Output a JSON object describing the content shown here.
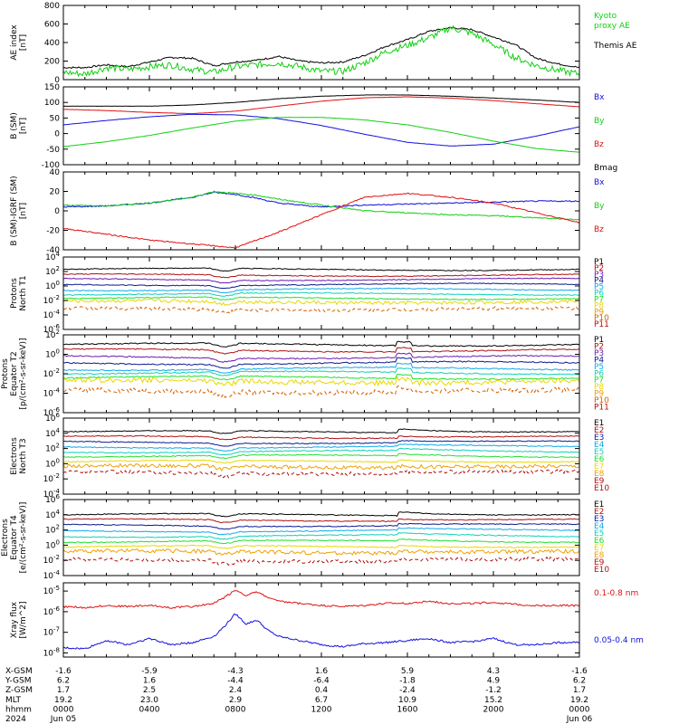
{
  "colors": {
    "black": "#000000",
    "red": "#e01010",
    "green": "#10d010",
    "blue": "#1010e0",
    "purple": "#6a1ab0",
    "navy": "#0a1a90",
    "cyan": "#10a8e8",
    "teal": "#10d0b8",
    "lime": "#20e030",
    "yellow": "#e8d800",
    "orange": "#f0a000",
    "dkorange": "#d86000",
    "darkred": "#b01010"
  },
  "chart_data": [
    {
      "type": "line",
      "id": "ae",
      "ylabel": [
        "AE index",
        "[nT]"
      ],
      "ylim": [
        0,
        800
      ],
      "yticks": [
        0,
        200,
        400,
        600,
        800
      ],
      "ytick_labels": [
        "0",
        "200",
        "400",
        "600",
        "800"
      ],
      "legend": [
        {
          "text": "Kyoto",
          "color": "green"
        },
        {
          "text": "proxy AE",
          "color": "green"
        },
        {
          "text": "",
          "color": "black"
        },
        {
          "text": "Themis AE",
          "color": "black"
        }
      ],
      "series": [
        {
          "color": "black",
          "x": [
            0,
            1,
            2,
            3,
            4,
            5,
            6,
            7,
            8,
            9,
            10,
            11,
            12,
            13,
            14,
            15,
            16,
            17,
            18,
            19,
            20,
            21,
            22,
            23,
            24
          ],
          "values": [
            130,
            130,
            160,
            140,
            190,
            240,
            230,
            150,
            190,
            210,
            250,
            200,
            180,
            190,
            260,
            360,
            430,
            520,
            560,
            540,
            460,
            380,
            230,
            170,
            130
          ]
        },
        {
          "color": "green",
          "x": [
            0,
            1,
            2,
            3,
            4,
            5,
            6,
            7,
            8,
            9,
            10,
            11,
            12,
            13,
            14,
            15,
            16,
            17,
            18,
            19,
            20,
            21,
            22,
            23,
            24
          ],
          "values": [
            80,
            60,
            130,
            110,
            140,
            160,
            110,
            80,
            140,
            160,
            180,
            140,
            90,
            90,
            180,
            300,
            370,
            450,
            560,
            500,
            380,
            240,
            150,
            100,
            60
          ]
        }
      ]
    },
    {
      "type": "line",
      "id": "bsm",
      "ylabel": [
        "B (SM)",
        "[nT]"
      ],
      "ylim": [
        -100,
        150
      ],
      "yticks": [
        -100,
        -50,
        0,
        50,
        100,
        150
      ],
      "ytick_labels": [
        "-100",
        "-50",
        "0",
        "50",
        "100",
        "150"
      ],
      "legend": [
        {
          "text": "Bx",
          "color": "blue"
        },
        {
          "text": "By",
          "color": "green"
        },
        {
          "text": "Bz",
          "color": "red"
        },
        {
          "text": "Bmag",
          "color": "black"
        }
      ],
      "series": [
        {
          "color": "black",
          "x": [
            0,
            2,
            4,
            6,
            8,
            10,
            12,
            14,
            16,
            18,
            20,
            22,
            24
          ],
          "values": [
            88,
            88,
            88,
            92,
            100,
            112,
            120,
            124,
            124,
            120,
            114,
            108,
            100
          ]
        },
        {
          "color": "red",
          "x": [
            0,
            2,
            4,
            6,
            8,
            10,
            12,
            14,
            16,
            18,
            20,
            22,
            24
          ],
          "values": [
            78,
            74,
            68,
            64,
            72,
            88,
            104,
            115,
            118,
            114,
            106,
            96,
            86
          ]
        },
        {
          "color": "blue",
          "x": [
            0,
            2,
            4,
            6,
            8,
            10,
            12,
            14,
            16,
            18,
            20,
            22,
            24
          ],
          "values": [
            28,
            42,
            54,
            62,
            60,
            48,
            26,
            -2,
            -28,
            -40,
            -34,
            -8,
            22
          ]
        },
        {
          "color": "green",
          "x": [
            0,
            2,
            4,
            6,
            8,
            10,
            12,
            14,
            16,
            18,
            20,
            22,
            24
          ],
          "values": [
            -42,
            -26,
            -6,
            18,
            40,
            52,
            52,
            44,
            28,
            4,
            -24,
            -48,
            -60
          ]
        }
      ]
    },
    {
      "type": "line",
      "id": "dbsm",
      "ylabel": [
        "B (SM)-IGRF (SM)",
        "[nT]"
      ],
      "ylim": [
        -40,
        40
      ],
      "yticks": [
        -40,
        -20,
        0,
        20,
        40
      ],
      "ytick_labels": [
        "-40",
        "-20",
        "0",
        "20",
        "40"
      ],
      "legend": [
        {
          "text": "Bx",
          "color": "blue"
        },
        {
          "text": "By",
          "color": "green"
        },
        {
          "text": "Bz",
          "color": "red"
        }
      ],
      "series": [
        {
          "color": "blue",
          "x": [
            0,
            2,
            4,
            6,
            7,
            8,
            9,
            10,
            12,
            14,
            16,
            18,
            20,
            22,
            24
          ],
          "values": [
            4,
            5,
            8,
            14,
            19,
            17,
            13,
            8,
            4,
            6,
            7,
            8,
            9,
            10,
            10
          ]
        },
        {
          "color": "green",
          "x": [
            0,
            2,
            4,
            6,
            7,
            8,
            9,
            10,
            12,
            14,
            16,
            18,
            20,
            22,
            24
          ],
          "values": [
            6,
            5,
            8,
            14,
            20,
            18,
            16,
            12,
            6,
            0,
            -2,
            -4,
            -5,
            -7,
            -9
          ]
        },
        {
          "color": "red",
          "x": [
            0,
            2,
            4,
            6,
            7,
            8,
            9,
            10,
            12,
            14,
            16,
            18,
            20,
            22,
            24
          ],
          "values": [
            -18,
            -24,
            -30,
            -34,
            -36,
            -38,
            -30,
            -22,
            -4,
            14,
            18,
            14,
            8,
            -2,
            -12
          ]
        }
      ]
    },
    {
      "type": "line",
      "id": "pn",
      "ylabel": [
        "Protons",
        "North T1"
      ],
      "log": true,
      "ylim_exp": [
        -6,
        4
      ],
      "ytick_labels": [
        "10",
        "10",
        "10",
        "10",
        "10",
        "10"
      ],
      "ytick_exps": [
        -6,
        -4,
        -2,
        0,
        2,
        4
      ],
      "legend": [
        {
          "text": "P1",
          "color": "black"
        },
        {
          "text": "P2",
          "color": "darkred"
        },
        {
          "text": "P3",
          "color": "purple"
        },
        {
          "text": "P4",
          "color": "navy"
        },
        {
          "text": "P5",
          "color": "cyan"
        },
        {
          "text": "P6",
          "color": "teal"
        },
        {
          "text": "P7",
          "color": "lime"
        },
        {
          "text": "P8",
          "color": "yellow"
        },
        {
          "text": "P9",
          "color": "orange"
        },
        {
          "text": "P10",
          "color": "dkorange"
        },
        {
          "text": "P11",
          "color": "darkred"
        }
      ],
      "levels": [
        {
          "color": "black",
          "value": 2.3
        },
        {
          "color": "darkred",
          "value": 1.5
        },
        {
          "color": "purple",
          "value": 0.9
        },
        {
          "color": "navy",
          "value": 0.2
        },
        {
          "color": "cyan",
          "value": -0.5
        },
        {
          "color": "teal",
          "value": -1.1
        },
        {
          "color": "lime",
          "value": -1.7
        },
        {
          "color": "yellow",
          "value": -2.2
        },
        {
          "color": "dkorange",
          "value": -3.2
        }
      ]
    },
    {
      "type": "line",
      "id": "pe",
      "ylabel": [
        "Protons",
        "Equator T2",
        "[p/(cm²-s-sr-keV)]"
      ],
      "log": true,
      "ylim_exp": [
        -6,
        2
      ],
      "ytick_labels": [
        "10",
        "10",
        "10",
        "10",
        "10"
      ],
      "ytick_exps": [
        -6,
        -4,
        -2,
        0,
        2
      ],
      "legend": [
        {
          "text": "P1",
          "color": "black"
        },
        {
          "text": "P2",
          "color": "darkred"
        },
        {
          "text": "P3",
          "color": "purple"
        },
        {
          "text": "P4",
          "color": "navy"
        },
        {
          "text": "P5",
          "color": "cyan"
        },
        {
          "text": "P6",
          "color": "teal"
        },
        {
          "text": "P7",
          "color": "lime"
        },
        {
          "text": "P8",
          "color": "yellow"
        },
        {
          "text": "P9",
          "color": "orange"
        },
        {
          "text": "P10",
          "color": "dkorange"
        },
        {
          "text": "P11",
          "color": "darkred"
        }
      ],
      "levels": [
        {
          "color": "black",
          "value": 1.0
        },
        {
          "color": "darkred",
          "value": 0.4
        },
        {
          "color": "purple",
          "value": -0.3
        },
        {
          "color": "navy",
          "value": -0.9
        },
        {
          "color": "cyan",
          "value": -1.5
        },
        {
          "color": "teal",
          "value": -1.9
        },
        {
          "color": "lime",
          "value": -2.4
        },
        {
          "color": "yellow",
          "value": -2.8
        },
        {
          "color": "dkorange",
          "value": -3.8
        }
      ]
    },
    {
      "type": "line",
      "id": "en",
      "ylabel": [
        "Electrons",
        "North T3"
      ],
      "log": true,
      "ylim_exp": [
        -4,
        6
      ],
      "ytick_labels": [
        "10",
        "10",
        "10",
        "10",
        "10",
        "10"
      ],
      "ytick_exps": [
        -4,
        -2,
        0,
        2,
        4,
        6
      ],
      "legend": [
        {
          "text": "E1",
          "color": "black"
        },
        {
          "text": "E2",
          "color": "darkred"
        },
        {
          "text": "E3",
          "color": "navy"
        },
        {
          "text": "E4",
          "color": "cyan"
        },
        {
          "text": "E5",
          "color": "teal"
        },
        {
          "text": "E6",
          "color": "lime"
        },
        {
          "text": "E7",
          "color": "yellow"
        },
        {
          "text": "E8",
          "color": "orange"
        },
        {
          "text": "E9",
          "color": "darkred"
        },
        {
          "text": "E10",
          "color": "darkred"
        }
      ],
      "levels": [
        {
          "color": "black",
          "value": 4.2
        },
        {
          "color": "darkred",
          "value": 3.5
        },
        {
          "color": "navy",
          "value": 2.8
        },
        {
          "color": "cyan",
          "value": 2.2
        },
        {
          "color": "teal",
          "value": 1.6
        },
        {
          "color": "lime",
          "value": 1.0
        },
        {
          "color": "yellow",
          "value": 0.3
        },
        {
          "color": "orange",
          "value": -0.4
        },
        {
          "color": "darkred",
          "value": -1.2
        }
      ]
    },
    {
      "type": "line",
      "id": "ee",
      "ylabel": [
        "Electrons",
        "Equator T4",
        "[e/(cm²-s-sr-keV)]"
      ],
      "log": true,
      "ylim_exp": [
        -4,
        6
      ],
      "ytick_labels": [
        "10",
        "10",
        "10",
        "10",
        "10",
        "10"
      ],
      "ytick_exps": [
        -4,
        -2,
        0,
        2,
        4,
        6
      ],
      "legend": [
        {
          "text": "E1",
          "color": "black"
        },
        {
          "text": "E2",
          "color": "darkred"
        },
        {
          "text": "E3",
          "color": "navy"
        },
        {
          "text": "E4",
          "color": "cyan"
        },
        {
          "text": "E5",
          "color": "teal"
        },
        {
          "text": "E6",
          "color": "lime"
        },
        {
          "text": "E7",
          "color": "yellow"
        },
        {
          "text": "E8",
          "color": "orange"
        },
        {
          "text": "E9",
          "color": "darkred"
        },
        {
          "text": "E10",
          "color": "darkred"
        }
      ],
      "levels": [
        {
          "color": "black",
          "value": 4.0
        },
        {
          "color": "darkred",
          "value": 3.3
        },
        {
          "color": "navy",
          "value": 2.6
        },
        {
          "color": "cyan",
          "value": 1.9
        },
        {
          "color": "teal",
          "value": 1.2
        },
        {
          "color": "lime",
          "value": 0.5
        },
        {
          "color": "yellow",
          "value": -0.2
        },
        {
          "color": "orange",
          "value": -0.9
        },
        {
          "color": "darkred",
          "value": -2.0
        }
      ]
    },
    {
      "type": "line",
      "id": "xray",
      "ylabel": [
        "Xray flux",
        "[W/m^2]"
      ],
      "log": true,
      "ylim_exp": [
        -8.2,
        -4.6
      ],
      "ytick_labels": [
        "10",
        "10",
        "10",
        "10"
      ],
      "ytick_exps": [
        -8,
        -7,
        -6,
        -5
      ],
      "legend": [
        {
          "text": "0.1-0.8 nm",
          "color": "red"
        },
        {
          "text": "",
          "color": "red"
        },
        {
          "text": "0.05-0.4 nm",
          "color": "blue"
        }
      ],
      "series": [
        {
          "color": "red",
          "x": [
            0,
            1,
            2,
            3,
            4,
            5,
            6,
            7,
            7.5,
            8,
            8.5,
            9,
            9.5,
            10,
            11,
            12,
            13,
            14,
            15,
            16,
            17,
            18,
            19,
            20,
            21,
            22,
            23,
            24
          ],
          "values": [
            -5.75,
            -5.8,
            -5.7,
            -5.75,
            -5.7,
            -5.8,
            -5.75,
            -5.6,
            -5.3,
            -4.95,
            -5.2,
            -5.05,
            -5.3,
            -5.5,
            -5.6,
            -5.7,
            -5.75,
            -5.7,
            -5.6,
            -5.6,
            -5.5,
            -5.6,
            -5.6,
            -5.55,
            -5.65,
            -5.7,
            -5.7,
            -5.7
          ]
        },
        {
          "color": "blue",
          "x": [
            0,
            1,
            2,
            3,
            4,
            5,
            6,
            7,
            7.5,
            8,
            8.5,
            9,
            9.5,
            10,
            11,
            12,
            13,
            14,
            15,
            16,
            17,
            18,
            19,
            20,
            21,
            22,
            23,
            24
          ],
          "values": [
            -7.75,
            -7.8,
            -7.4,
            -7.6,
            -7.3,
            -7.6,
            -7.5,
            -7.2,
            -6.7,
            -6.1,
            -6.6,
            -6.4,
            -6.9,
            -7.2,
            -7.4,
            -7.6,
            -7.7,
            -7.55,
            -7.5,
            -7.4,
            -7.3,
            -7.5,
            -7.45,
            -7.3,
            -7.6,
            -7.6,
            -7.5,
            -7.5
          ]
        }
      ]
    }
  ],
  "xaxis": {
    "row_labels": [
      "X-GSM",
      "Y-GSM",
      "Z-GSM",
      "MLT",
      "hhmm",
      "2024"
    ],
    "columns": [
      {
        "values": [
          "-1.6",
          "6.2",
          "1.7",
          "19.2",
          "0000",
          "Jun 05"
        ]
      },
      {
        "values": [
          "-5.9",
          "1.6",
          "2.5",
          "23.0",
          "0400",
          ""
        ]
      },
      {
        "values": [
          "-4.3",
          "-4.4",
          "2.4",
          "2.9",
          "0800",
          ""
        ]
      },
      {
        "values": [
          "1.6",
          "-6.4",
          "0.4",
          "6.7",
          "1200",
          ""
        ]
      },
      {
        "values": [
          "5.9",
          "-1.8",
          "-2.4",
          "10.9",
          "1600",
          ""
        ]
      },
      {
        "values": [
          "4.3",
          "4.9",
          "-1.2",
          "15.2",
          "2000",
          ""
        ]
      },
      {
        "values": [
          "-1.6",
          "6.2",
          "1.7",
          "19.2",
          "0000",
          "Jun 06"
        ]
      }
    ]
  }
}
